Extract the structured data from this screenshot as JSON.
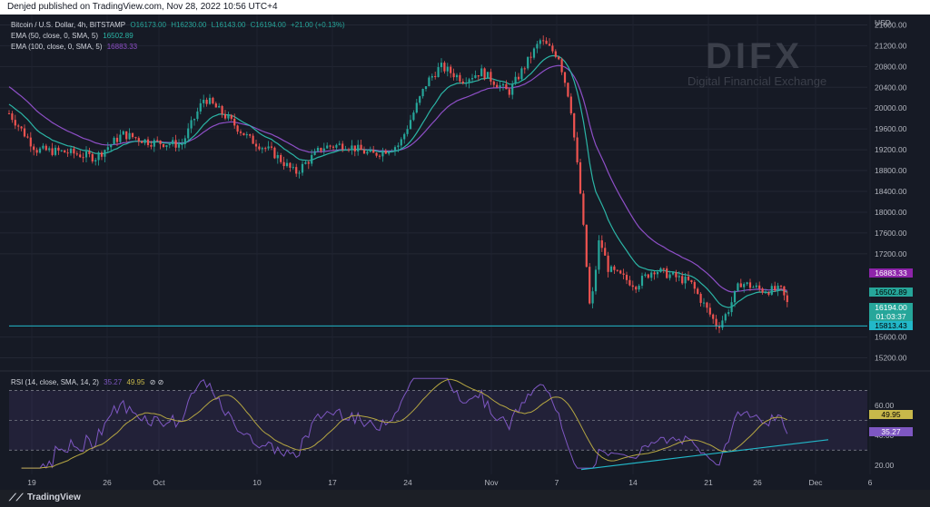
{
  "header": {
    "published": "Denjed published on TradingView.com, Nov 28, 2022 10:56 UTC+4"
  },
  "legend": {
    "symbol": "Bitcoin / U.S. Dollar, 4h, BITSTAMP",
    "ohlc": [
      "O16173.00",
      "H16230.00",
      "L16143.00",
      "C16194.00",
      "+21.00 (+0.13%)"
    ],
    "ema50_label": "EMA (50, close, 0, SMA, 5)",
    "ema50_value": "16502.89",
    "ema100_label": "EMA (100, close, 0, SMA, 5)",
    "ema100_value": "16883.33",
    "rsi_label": "RSI (14, close, SMA, 14, 2)",
    "rsi_value": "35.27",
    "rsi_ma_value": "49.95",
    "rsi_icons": "⊘ ⊘"
  },
  "logo": {
    "name": "DIFX",
    "tagline": "Digital Financial Exchange"
  },
  "price_axis": {
    "currency": "USD",
    "ticks": [
      "21600.00",
      "21200.00",
      "20800.00",
      "20400.00",
      "20000.00",
      "19600.00",
      "19200.00",
      "18800.00",
      "18400.00",
      "18000.00",
      "17600.00",
      "17200.00",
      "15600.00",
      "15200.00"
    ]
  },
  "price_tags": {
    "ema100": "16883.33",
    "ema50": "16502.89",
    "last_price": "16194.00",
    "countdown": "01:03:37",
    "support": "15813.43"
  },
  "rsi_axis": {
    "ticks": [
      "60.00",
      "40.00",
      "20.00"
    ],
    "tag_ma": "49.95",
    "tag_rsi": "35.27"
  },
  "time_axis": {
    "ticks": [
      "19",
      "26",
      "Oct",
      "10",
      "17",
      "24",
      "Nov",
      "7",
      "14",
      "21",
      "26",
      "Dec",
      "6"
    ]
  },
  "footer": {
    "brand": "TradingView"
  },
  "colors": {
    "up": "#26a69a",
    "down": "#ef5350",
    "ema50": "#2bb5a6",
    "ema100": "#8e4fc7",
    "rsi": "#7e57c2",
    "rsi_ma": "#b5a642",
    "support": "#22b8c9"
  },
  "chart_data": {
    "type": "candlestick",
    "symbol": "Bitcoin / U.S. Dollar",
    "timeframe": "4h",
    "title": "Bitcoin / U.S. Dollar, 4h, BITSTAMP",
    "x_ticks": [
      "19",
      "26",
      "Oct",
      "10",
      "17",
      "24",
      "Nov",
      "7",
      "14",
      "21",
      "26",
      "Dec",
      "6"
    ],
    "ylim": [
      15000,
      21800
    ],
    "price_path": [
      {
        "x": "Sep 19",
        "close": 19900
      },
      {
        "x": "Sep 22",
        "close": 19200
      },
      {
        "x": "Sep 26",
        "close": 19000
      },
      {
        "x": "Sep 29",
        "close": 19500
      },
      {
        "x": "Oct 2",
        "close": 19350
      },
      {
        "x": "Oct 5",
        "close": 20250
      },
      {
        "x": "Oct 8",
        "close": 19500
      },
      {
        "x": "Oct 12",
        "close": 19150
      },
      {
        "x": "Oct 13",
        "close": 18700
      },
      {
        "x": "Oct 16",
        "close": 19200
      },
      {
        "x": "Oct 20",
        "close": 19100
      },
      {
        "x": "Oct 23",
        "close": 19300
      },
      {
        "x": "Oct 26",
        "close": 20700
      },
      {
        "x": "Oct 29",
        "close": 20800
      },
      {
        "x": "Nov 1",
        "close": 20400
      },
      {
        "x": "Nov 4",
        "close": 21300
      },
      {
        "x": "Nov 6",
        "close": 21000
      },
      {
        "x": "Nov 8",
        "close": 18500
      },
      {
        "x": "Nov 9",
        "close": 16000
      },
      {
        "x": "Nov 10",
        "close": 17600
      },
      {
        "x": "Nov 12",
        "close": 16700
      },
      {
        "x": "Nov 15",
        "close": 16800
      },
      {
        "x": "Nov 18",
        "close": 16650
      },
      {
        "x": "Nov 21",
        "close": 15900
      },
      {
        "x": "Nov 22",
        "close": 16200
      },
      {
        "x": "Nov 25",
        "close": 16550
      },
      {
        "x": "Nov 28",
        "close": 16194
      }
    ],
    "ema50_last": 16502.89,
    "ema100_last": 16883.33,
    "support_level": 15813.43,
    "rsi": {
      "period": 14,
      "last": 35.27,
      "ma_last": 49.95,
      "bands": [
        30,
        50,
        70
      ],
      "ylim": [
        15,
        80
      ]
    }
  }
}
